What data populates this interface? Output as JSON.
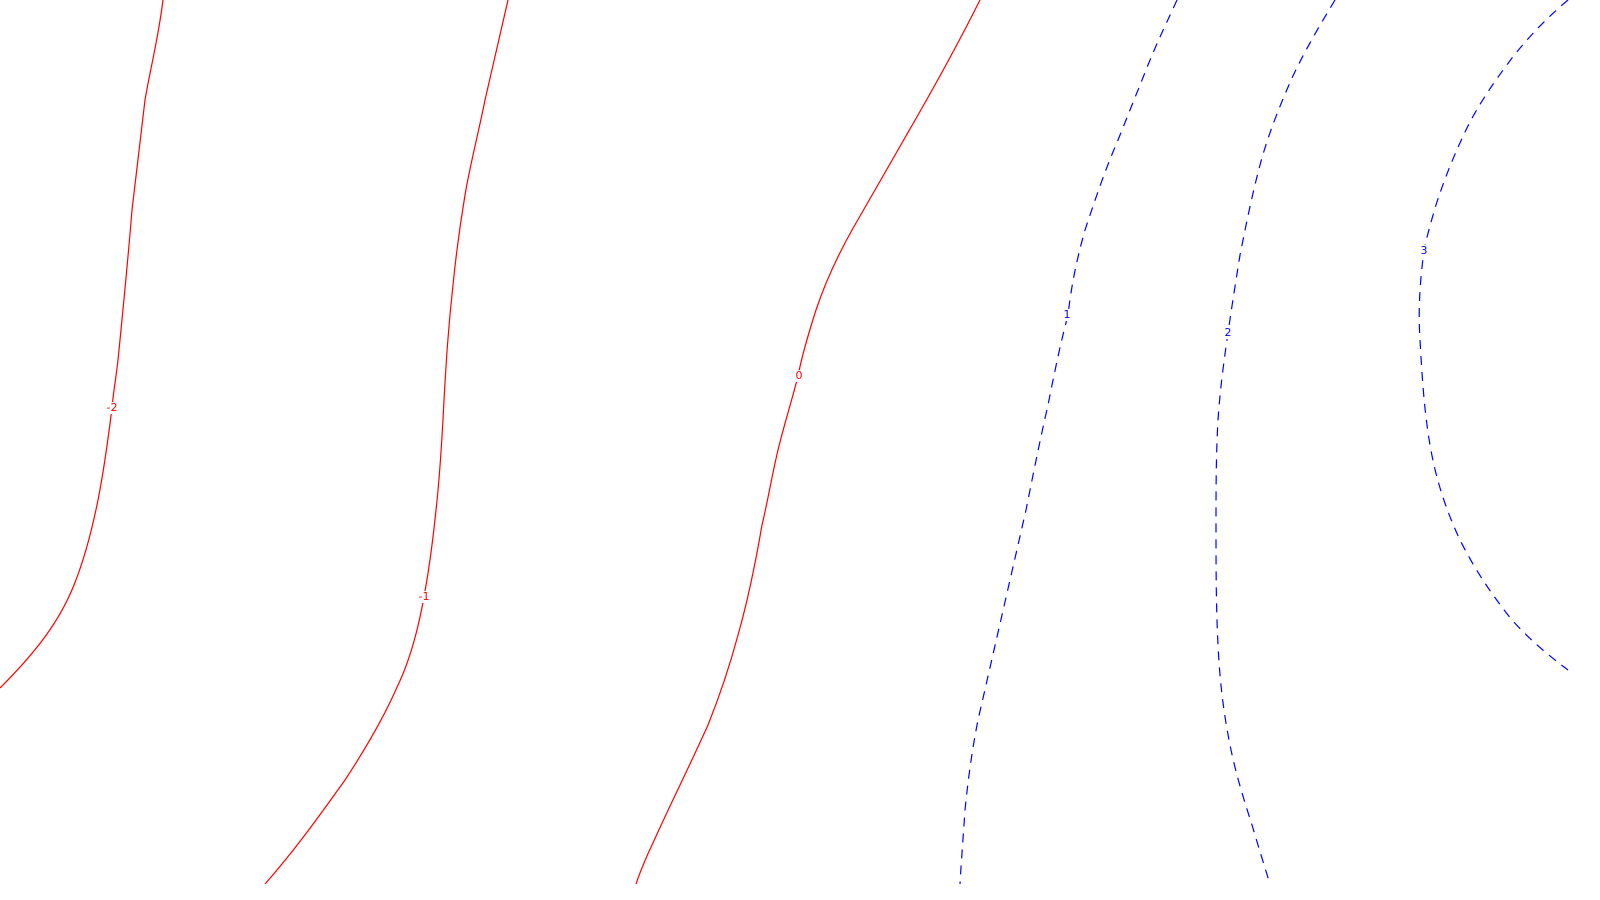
{
  "chart_data": {
    "type": "contour",
    "title": "",
    "xlabel": "",
    "ylabel": "",
    "grid": false,
    "legend": "none",
    "colors": {
      "negative_and_zero": "#ff0000",
      "positive": "#0000ff",
      "background": "#ffffff"
    },
    "line_styles": {
      "negative_and_zero": "solid",
      "positive": "dashed"
    },
    "levels": [
      {
        "value": -2,
        "label": "-2"
      },
      {
        "value": -1,
        "label": "-1"
      },
      {
        "value": 0,
        "label": "0"
      },
      {
        "value": 1,
        "label": "1"
      },
      {
        "value": 2,
        "label": "2"
      },
      {
        "value": 3,
        "label": "3"
      }
    ]
  }
}
